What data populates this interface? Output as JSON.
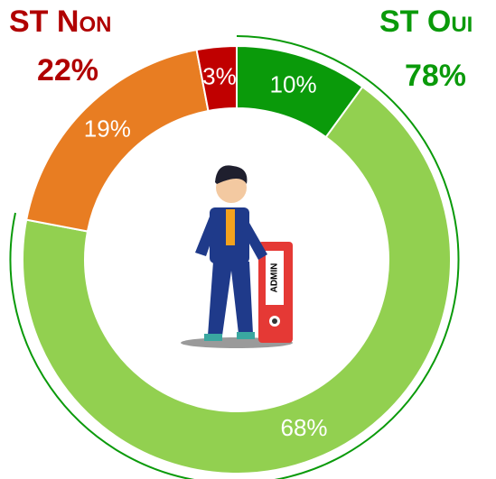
{
  "chart_data": {
    "type": "donut",
    "values": [
      10,
      68,
      19,
      3
    ],
    "value_labels": [
      "10%",
      "68%",
      "19%",
      "3%"
    ],
    "colors": [
      "#0a9a0a",
      "#92d050",
      "#e87d22",
      "#c00000"
    ],
    "groups": [
      {
        "name": "ST Oui",
        "label": "78%",
        "color": "#0a9a0a"
      },
      {
        "name": "ST Non",
        "label": "22%",
        "color": "#b00000"
      }
    ]
  },
  "illustration": {
    "folder_label": "ADMIN"
  }
}
